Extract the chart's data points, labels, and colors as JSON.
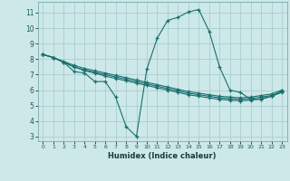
{
  "xlabel": "Humidex (Indice chaleur)",
  "bg_color": "#cde8e8",
  "grid_color": "#aacece",
  "line_color": "#1a6e6e",
  "xlim": [
    -0.5,
    23.5
  ],
  "ylim": [
    2.7,
    11.7
  ],
  "yticks": [
    3,
    4,
    5,
    6,
    7,
    8,
    9,
    10,
    11
  ],
  "xticks": [
    0,
    1,
    2,
    3,
    4,
    5,
    6,
    7,
    8,
    9,
    10,
    11,
    12,
    13,
    14,
    15,
    16,
    17,
    18,
    19,
    20,
    21,
    22,
    23
  ],
  "line1_x": [
    0,
    1,
    2,
    3,
    4,
    5,
    6,
    7,
    8,
    9,
    10,
    11,
    12,
    13,
    14,
    15,
    16,
    17,
    18,
    19,
    20,
    21,
    22,
    23
  ],
  "line1_y": [
    8.3,
    8.1,
    7.8,
    7.5,
    7.25,
    7.1,
    6.9,
    6.75,
    6.6,
    6.45,
    6.3,
    6.15,
    6.0,
    5.85,
    5.7,
    5.6,
    5.5,
    5.4,
    5.35,
    5.3,
    5.35,
    5.45,
    5.6,
    5.85
  ],
  "line2_x": [
    0,
    1,
    2,
    3,
    4,
    5,
    6,
    7,
    8,
    9,
    10,
    11,
    12,
    13,
    14,
    15,
    16,
    17,
    18,
    19,
    20,
    21,
    22,
    23
  ],
  "line2_y": [
    8.3,
    8.1,
    7.8,
    7.5,
    7.3,
    7.15,
    7.0,
    6.85,
    6.7,
    6.55,
    6.4,
    6.25,
    6.1,
    5.95,
    5.8,
    5.7,
    5.6,
    5.5,
    5.45,
    5.4,
    5.45,
    5.55,
    5.65,
    5.9
  ],
  "line3_x": [
    0,
    1,
    2,
    3,
    4,
    5,
    6,
    7,
    8,
    9,
    10,
    11,
    12,
    13,
    14,
    15,
    16,
    17,
    18,
    19,
    20,
    21,
    22,
    23
  ],
  "line3_y": [
    8.3,
    8.1,
    7.85,
    7.6,
    7.4,
    7.25,
    7.1,
    6.95,
    6.8,
    6.65,
    6.5,
    6.35,
    6.2,
    6.05,
    5.9,
    5.8,
    5.7,
    5.6,
    5.55,
    5.5,
    5.55,
    5.65,
    5.75,
    6.0
  ],
  "line4_x": [
    0,
    1,
    2,
    3,
    4,
    5,
    6,
    7,
    8,
    9,
    10,
    11,
    12,
    13,
    14,
    15,
    16,
    17,
    18,
    19,
    20,
    21,
    22,
    23
  ],
  "line4_y": [
    8.3,
    8.1,
    7.8,
    7.2,
    7.1,
    6.55,
    6.55,
    5.55,
    3.65,
    3.0,
    7.35,
    9.35,
    10.5,
    10.7,
    11.05,
    11.2,
    9.8,
    7.5,
    6.0,
    5.85,
    5.4,
    5.4,
    5.6,
    5.95
  ]
}
